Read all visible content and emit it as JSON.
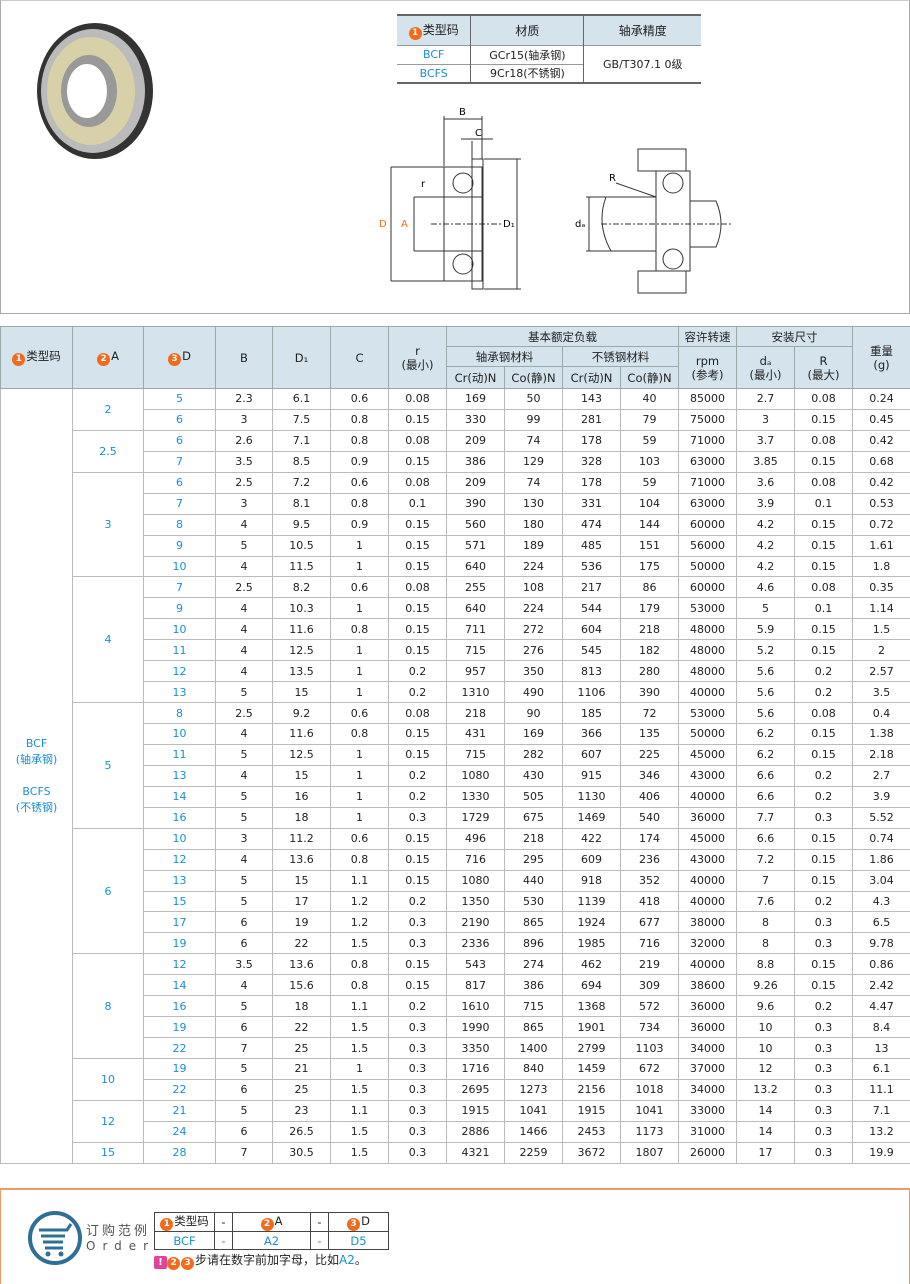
{
  "material_table": {
    "headers": [
      "类型码",
      "材质",
      "轴承精度"
    ],
    "rows": [
      [
        "BCF",
        "GCr15(轴承钢)"
      ],
      [
        "BCFS",
        "9Cr18(不锈钢)"
      ]
    ],
    "precision": "GB/T307.1 0级"
  },
  "drawing_labels": {
    "B": "B",
    "C": "C",
    "r": "r",
    "D": "D",
    "A": "A",
    "D1": "D₁",
    "R": "R",
    "da": "dₐ"
  },
  "table": {
    "headers": {
      "type": "类型码",
      "A": "A",
      "D": "D",
      "B": "B",
      "D1": "D₁",
      "C": "C",
      "r": "r\n(最小)",
      "load": "基本额定负载",
      "bearing_steel": "轴承钢材料",
      "stainless": "不锈钢材料",
      "cr": "Cr(动)N",
      "co": "Co(静)N",
      "speed": "容许转速",
      "rpm": "rpm\n(参考)",
      "install": "安装尺寸",
      "da": "dₐ\n(最小)",
      "R": "R\n(最大)",
      "weight": "重量\n(g)"
    },
    "type_label": "BCF\n(轴承钢)\n\nBCFS\n(不锈钢)",
    "groups": [
      {
        "A": "2",
        "rows": [
          [
            "5",
            "2.3",
            "6.1",
            "0.6",
            "0.08",
            "169",
            "50",
            "143",
            "40",
            "85000",
            "2.7",
            "0.08",
            "0.24"
          ],
          [
            "6",
            "3",
            "7.5",
            "0.8",
            "0.15",
            "330",
            "99",
            "281",
            "79",
            "75000",
            "3",
            "0.15",
            "0.45"
          ]
        ]
      },
      {
        "A": "2.5",
        "rows": [
          [
            "6",
            "2.6",
            "7.1",
            "0.8",
            "0.08",
            "209",
            "74",
            "178",
            "59",
            "71000",
            "3.7",
            "0.08",
            "0.42"
          ],
          [
            "7",
            "3.5",
            "8.5",
            "0.9",
            "0.15",
            "386",
            "129",
            "328",
            "103",
            "63000",
            "3.85",
            "0.15",
            "0.68"
          ]
        ]
      },
      {
        "A": "3",
        "rows": [
          [
            "6",
            "2.5",
            "7.2",
            "0.6",
            "0.08",
            "209",
            "74",
            "178",
            "59",
            "71000",
            "3.6",
            "0.08",
            "0.42"
          ],
          [
            "7",
            "3",
            "8.1",
            "0.8",
            "0.1",
            "390",
            "130",
            "331",
            "104",
            "63000",
            "3.9",
            "0.1",
            "0.53"
          ],
          [
            "8",
            "4",
            "9.5",
            "0.9",
            "0.15",
            "560",
            "180",
            "474",
            "144",
            "60000",
            "4.2",
            "0.15",
            "0.72"
          ],
          [
            "9",
            "5",
            "10.5",
            "1",
            "0.15",
            "571",
            "189",
            "485",
            "151",
            "56000",
            "4.2",
            "0.15",
            "1.61"
          ],
          [
            "10",
            "4",
            "11.5",
            "1",
            "0.15",
            "640",
            "224",
            "536",
            "175",
            "50000",
            "4.2",
            "0.15",
            "1.8"
          ]
        ]
      },
      {
        "A": "4",
        "rows": [
          [
            "7",
            "2.5",
            "8.2",
            "0.6",
            "0.08",
            "255",
            "108",
            "217",
            "86",
            "60000",
            "4.6",
            "0.08",
            "0.35"
          ],
          [
            "9",
            "4",
            "10.3",
            "1",
            "0.15",
            "640",
            "224",
            "544",
            "179",
            "53000",
            "5",
            "0.1",
            "1.14"
          ],
          [
            "10",
            "4",
            "11.6",
            "0.8",
            "0.15",
            "711",
            "272",
            "604",
            "218",
            "48000",
            "5.9",
            "0.15",
            "1.5"
          ],
          [
            "11",
            "4",
            "12.5",
            "1",
            "0.15",
            "715",
            "276",
            "545",
            "182",
            "48000",
            "5.2",
            "0.15",
            "2"
          ],
          [
            "12",
            "4",
            "13.5",
            "1",
            "0.2",
            "957",
            "350",
            "813",
            "280",
            "48000",
            "5.6",
            "0.2",
            "2.57"
          ],
          [
            "13",
            "5",
            "15",
            "1",
            "0.2",
            "1310",
            "490",
            "1106",
            "390",
            "40000",
            "5.6",
            "0.2",
            "3.5"
          ]
        ]
      },
      {
        "A": "5",
        "rows": [
          [
            "8",
            "2.5",
            "9.2",
            "0.6",
            "0.08",
            "218",
            "90",
            "185",
            "72",
            "53000",
            "5.6",
            "0.08",
            "0.4"
          ],
          [
            "10",
            "4",
            "11.6",
            "0.8",
            "0.15",
            "431",
            "169",
            "366",
            "135",
            "50000",
            "6.2",
            "0.15",
            "1.38"
          ],
          [
            "11",
            "5",
            "12.5",
            "1",
            "0.15",
            "715",
            "282",
            "607",
            "225",
            "45000",
            "6.2",
            "0.15",
            "2.18"
          ],
          [
            "13",
            "4",
            "15",
            "1",
            "0.2",
            "1080",
            "430",
            "915",
            "346",
            "43000",
            "6.6",
            "0.2",
            "2.7"
          ],
          [
            "14",
            "5",
            "16",
            "1",
            "0.2",
            "1330",
            "505",
            "1130",
            "406",
            "40000",
            "6.6",
            "0.2",
            "3.9"
          ],
          [
            "16",
            "5",
            "18",
            "1",
            "0.3",
            "1729",
            "675",
            "1469",
            "540",
            "36000",
            "7.7",
            "0.3",
            "5.52"
          ]
        ]
      },
      {
        "A": "6",
        "rows": [
          [
            "10",
            "3",
            "11.2",
            "0.6",
            "0.15",
            "496",
            "218",
            "422",
            "174",
            "45000",
            "6.6",
            "0.15",
            "0.74"
          ],
          [
            "12",
            "4",
            "13.6",
            "0.8",
            "0.15",
            "716",
            "295",
            "609",
            "236",
            "43000",
            "7.2",
            "0.15",
            "1.86"
          ],
          [
            "13",
            "5",
            "15",
            "1.1",
            "0.15",
            "1080",
            "440",
            "918",
            "352",
            "40000",
            "7",
            "0.15",
            "3.04"
          ],
          [
            "15",
            "5",
            "17",
            "1.2",
            "0.2",
            "1350",
            "530",
            "1139",
            "418",
            "40000",
            "7.6",
            "0.2",
            "4.3"
          ],
          [
            "17",
            "6",
            "19",
            "1.2",
            "0.3",
            "2190",
            "865",
            "1924",
            "677",
            "38000",
            "8",
            "0.3",
            "6.5"
          ],
          [
            "19",
            "6",
            "22",
            "1.5",
            "0.3",
            "2336",
            "896",
            "1985",
            "716",
            "32000",
            "8",
            "0.3",
            "9.78"
          ]
        ]
      },
      {
        "A": "8",
        "rows": [
          [
            "12",
            "3.5",
            "13.6",
            "0.8",
            "0.15",
            "543",
            "274",
            "462",
            "219",
            "40000",
            "8.8",
            "0.15",
            "0.86"
          ],
          [
            "14",
            "4",
            "15.6",
            "0.8",
            "0.15",
            "817",
            "386",
            "694",
            "309",
            "38600",
            "9.26",
            "0.15",
            "2.42"
          ],
          [
            "16",
            "5",
            "18",
            "1.1",
            "0.2",
            "1610",
            "715",
            "1368",
            "572",
            "36000",
            "9.6",
            "0.2",
            "4.47"
          ],
          [
            "19",
            "6",
            "22",
            "1.5",
            "0.3",
            "1990",
            "865",
            "1901",
            "734",
            "36000",
            "10",
            "0.3",
            "8.4"
          ],
          [
            "22",
            "7",
            "25",
            "1.5",
            "0.3",
            "3350",
            "1400",
            "2799",
            "1103",
            "34000",
            "10",
            "0.3",
            "13"
          ]
        ]
      },
      {
        "A": "10",
        "rows": [
          [
            "19",
            "5",
            "21",
            "1",
            "0.3",
            "1716",
            "840",
            "1459",
            "672",
            "37000",
            "12",
            "0.3",
            "6.1"
          ],
          [
            "22",
            "6",
            "25",
            "1.5",
            "0.3",
            "2695",
            "1273",
            "2156",
            "1018",
            "34000",
            "13.2",
            "0.3",
            "11.1"
          ]
        ]
      },
      {
        "A": "12",
        "rows": [
          [
            "21",
            "5",
            "23",
            "1.1",
            "0.3",
            "1915",
            "1041",
            "1915",
            "1041",
            "33000",
            "14",
            "0.3",
            "7.1"
          ],
          [
            "24",
            "6",
            "26.5",
            "1.5",
            "0.3",
            "2886",
            "1466",
            "2453",
            "1173",
            "31000",
            "14",
            "0.3",
            "13.2"
          ]
        ]
      },
      {
        "A": "15",
        "rows": [
          [
            "28",
            "7",
            "30.5",
            "1.5",
            "0.3",
            "4321",
            "2259",
            "3672",
            "1807",
            "26000",
            "17",
            "0.3",
            "19.9"
          ]
        ]
      }
    ]
  },
  "order": {
    "title": "订购范例",
    "subtitle": "Order",
    "headers": [
      "类型码",
      "-",
      "A",
      "-",
      "D"
    ],
    "example": [
      "BCF",
      "-",
      "A2",
      "-",
      "D5"
    ],
    "note_prefix": "步请在数字前加字母，比如",
    "note_example": "A2",
    "note_suffix": "。"
  },
  "colors": {
    "accent": "#f26a1b",
    "blue": "#1a8ed3",
    "header_bg": "#d4e3ec",
    "order_icon": "#2f6f97"
  }
}
